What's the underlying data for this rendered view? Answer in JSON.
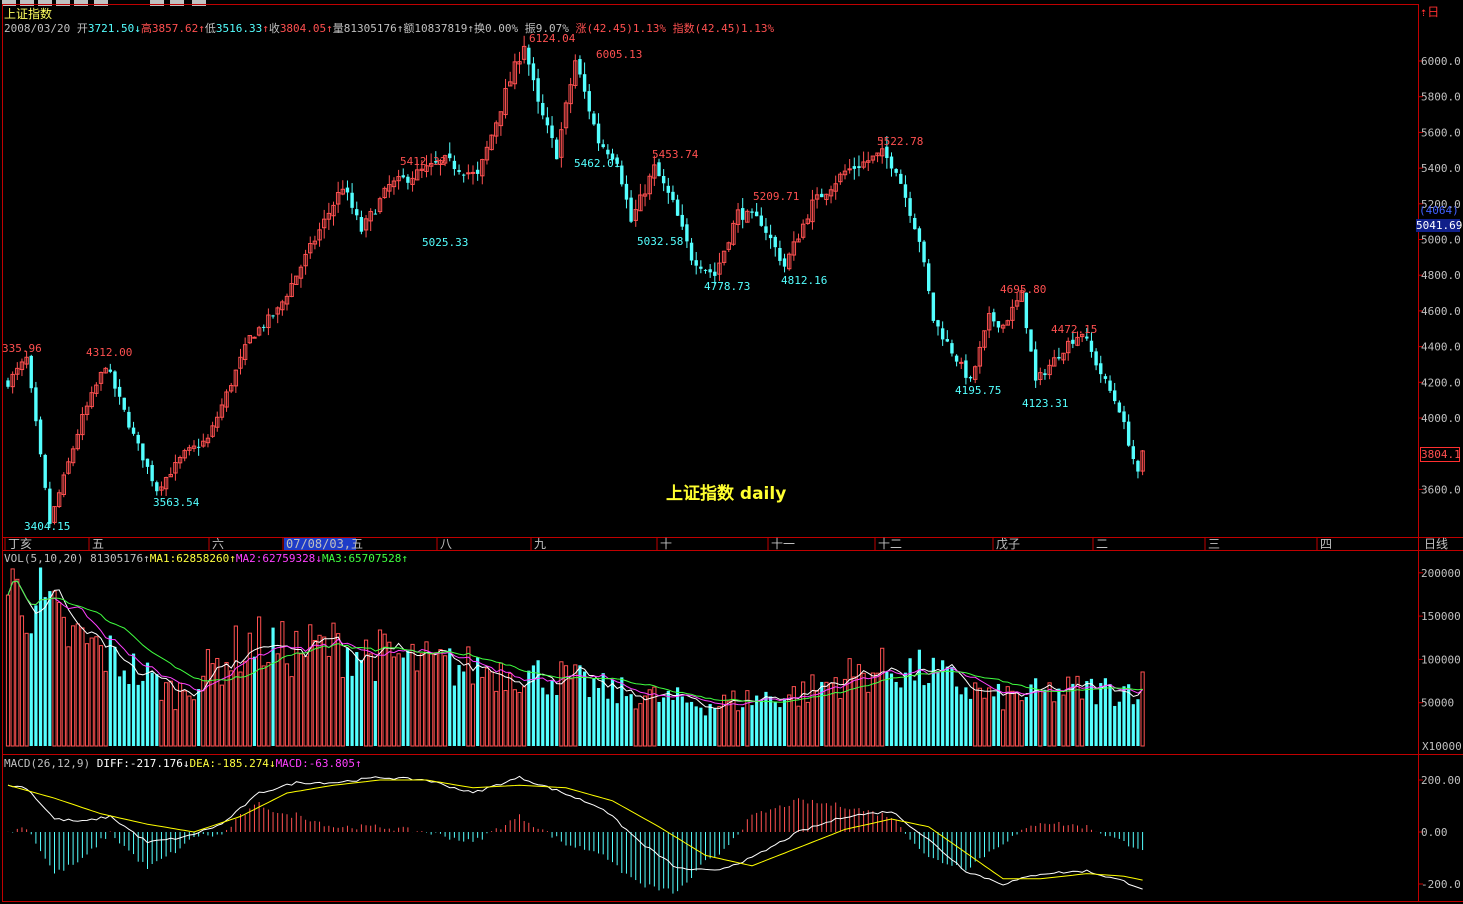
{
  "header": {
    "title": "上证指数",
    "date": "2008/03/20",
    "open_label": "开",
    "open": "3721.50",
    "high_label": "高",
    "high": "3857.62",
    "low_label": "低",
    "low": "3516.33",
    "close_label": "收",
    "close": "3804.05",
    "volume_label": "量",
    "volume": "81305176",
    "amount_label": "额",
    "amount": "10837819",
    "turnover_label": "换",
    "turnover": "0.00%",
    "amplitude_label": "振",
    "amplitude": "9.07%",
    "change_label": "涨",
    "change": "(42.45)1.13%",
    "index_label": "指数",
    "index_change": "(42.45)1.13%"
  },
  "watermark": "上证指数 daily",
  "right_panel": {
    "code": "(4064)",
    "price": "5041.69",
    "current_tag": "3804.1",
    "vol_unit": "X10000",
    "top_icon": "up-arrow-icon",
    "top_label": "日"
  },
  "colors": {
    "up": "#ff5050",
    "down": "#54ffff",
    "frame": "#c00000",
    "ma1": "#ffffff",
    "ma2": "#ff40ff",
    "ma3": "#40ff40",
    "diff": "#ffffff",
    "dea": "#ffff00",
    "date_bg": "#1e3cc8"
  },
  "chart_data": [
    {
      "type": "candlestick",
      "title": "上证指数",
      "y_ticks": [
        "6000.0",
        "5800.0",
        "5600.0",
        "5400.0",
        "5200.0",
        "5000.0",
        "4800.0",
        "4600.0",
        "4400.0",
        "4200.0",
        "4000.0",
        "3800.0",
        "3600.0"
      ],
      "x_ticks": [
        "丁亥",
        "五",
        "六",
        "07/08/03,五",
        "八",
        "九",
        "十",
        "十一",
        "十二",
        "戊子",
        "二",
        "三",
        "四",
        "日线"
      ],
      "annotations": [
        {
          "text": "335.96",
          "kind": "high"
        },
        {
          "text": "4312.00",
          "kind": "high"
        },
        {
          "text": "3404.15",
          "kind": "low"
        },
        {
          "text": "3563.54",
          "kind": "low"
        },
        {
          "text": "5412.32",
          "kind": "high"
        },
        {
          "text": "5025.33",
          "kind": "low"
        },
        {
          "text": "6124.04",
          "kind": "high"
        },
        {
          "text": "6005.13",
          "kind": "high"
        },
        {
          "text": "5462.01",
          "kind": "low"
        },
        {
          "text": "5453.74",
          "kind": "high"
        },
        {
          "text": "5032.58",
          "kind": "low"
        },
        {
          "text": "5209.71",
          "kind": "high"
        },
        {
          "text": "4778.73",
          "kind": "low"
        },
        {
          "text": "4812.16",
          "kind": "low"
        },
        {
          "text": "5522.78",
          "kind": "high"
        },
        {
          "text": "4195.75",
          "kind": "low"
        },
        {
          "text": "4695.80",
          "kind": "high"
        },
        {
          "text": "4472.15",
          "kind": "high"
        },
        {
          "text": "4123.31",
          "kind": "low"
        }
      ],
      "price_path": [
        [
          0,
          4200
        ],
        [
          4,
          4330
        ],
        [
          9,
          3410
        ],
        [
          16,
          4000
        ],
        [
          21,
          4300
        ],
        [
          27,
          3900
        ],
        [
          32,
          3600
        ],
        [
          38,
          3800
        ],
        [
          43,
          3880
        ],
        [
          52,
          4450
        ],
        [
          58,
          4600
        ],
        [
          64,
          4900
        ],
        [
          72,
          5300
        ],
        [
          76,
          5050
        ],
        [
          82,
          5300
        ],
        [
          94,
          5440
        ],
        [
          101,
          5350
        ],
        [
          107,
          5820
        ],
        [
          111,
          6100
        ],
        [
          114,
          5750
        ],
        [
          118,
          5480
        ],
        [
          122,
          6000
        ],
        [
          127,
          5550
        ],
        [
          131,
          5450
        ],
        [
          134,
          5100
        ],
        [
          139,
          5400
        ],
        [
          143,
          5200
        ],
        [
          147,
          4900
        ],
        [
          152,
          4800
        ],
        [
          157,
          5150
        ],
        [
          162,
          5100
        ],
        [
          167,
          4850
        ],
        [
          173,
          5200
        ],
        [
          180,
          5380
        ],
        [
          188,
          5480
        ],
        [
          191,
          5400
        ],
        [
          196,
          5000
        ],
        [
          199,
          4550
        ],
        [
          207,
          4200
        ],
        [
          211,
          4560
        ],
        [
          214,
          4520
        ],
        [
          218,
          4690
        ],
        [
          221,
          4200
        ],
        [
          228,
          4420
        ],
        [
          231,
          4480
        ],
        [
          235,
          4250
        ],
        [
          239,
          4050
        ],
        [
          243,
          3680
        ],
        [
          244,
          3800
        ]
      ]
    },
    {
      "type": "bar",
      "title": "VOL(5,10,20)",
      "value": "81305176",
      "series": [
        {
          "name": "MA1",
          "value": "62858260"
        },
        {
          "name": "MA2",
          "value": "62759328"
        },
        {
          "name": "MA3",
          "value": "65707528"
        }
      ],
      "y_ticks": [
        "200000",
        "150000",
        "100000",
        "50000"
      ],
      "volume_path": [
        [
          0,
          180000
        ],
        [
          6,
          170000
        ],
        [
          12,
          130000
        ],
        [
          20,
          110000
        ],
        [
          28,
          85000
        ],
        [
          36,
          60000
        ],
        [
          44,
          90000
        ],
        [
          52,
          120000
        ],
        [
          60,
          110000
        ],
        [
          70,
          115000
        ],
        [
          80,
          105000
        ],
        [
          90,
          95000
        ],
        [
          100,
          90000
        ],
        [
          110,
          85000
        ],
        [
          118,
          80000
        ],
        [
          128,
          65000
        ],
        [
          140,
          55000
        ],
        [
          152,
          48000
        ],
        [
          160,
          55000
        ],
        [
          170,
          60000
        ],
        [
          180,
          80000
        ],
        [
          190,
          90000
        ],
        [
          198,
          85000
        ],
        [
          205,
          70000
        ],
        [
          212,
          55000
        ],
        [
          220,
          60000
        ],
        [
          230,
          65000
        ],
        [
          238,
          65000
        ],
        [
          244,
          70000
        ]
      ]
    },
    {
      "type": "line",
      "title": "MACD(26,12,9)",
      "series": [
        {
          "name": "DIFF",
          "value": "-217.176"
        },
        {
          "name": "DEA",
          "value": "-185.274"
        },
        {
          "name": "MACD",
          "value": "-63.805"
        }
      ],
      "y_ticks": [
        "200.00",
        "0.00",
        "-200.0"
      ],
      "diff_path": [
        [
          0,
          180
        ],
        [
          4,
          170
        ],
        [
          10,
          50
        ],
        [
          16,
          40
        ],
        [
          22,
          60
        ],
        [
          30,
          -40
        ],
        [
          38,
          -20
        ],
        [
          46,
          30
        ],
        [
          54,
          150
        ],
        [
          62,
          190
        ],
        [
          70,
          190
        ],
        [
          80,
          210
        ],
        [
          90,
          200
        ],
        [
          100,
          150
        ],
        [
          110,
          210
        ],
        [
          118,
          160
        ],
        [
          128,
          90
        ],
        [
          136,
          -40
        ],
        [
          144,
          -140
        ],
        [
          152,
          -150
        ],
        [
          160,
          -100
        ],
        [
          170,
          0
        ],
        [
          180,
          60
        ],
        [
          190,
          80
        ],
        [
          198,
          -30
        ],
        [
          206,
          -150
        ],
        [
          214,
          -200
        ],
        [
          222,
          -160
        ],
        [
          232,
          -150
        ],
        [
          240,
          -190
        ],
        [
          244,
          -217
        ]
      ],
      "dea_path": [
        [
          0,
          180
        ],
        [
          10,
          130
        ],
        [
          20,
          70
        ],
        [
          30,
          30
        ],
        [
          40,
          0
        ],
        [
          50,
          60
        ],
        [
          60,
          150
        ],
        [
          70,
          180
        ],
        [
          80,
          200
        ],
        [
          90,
          200
        ],
        [
          100,
          170
        ],
        [
          110,
          180
        ],
        [
          120,
          170
        ],
        [
          130,
          120
        ],
        [
          140,
          20
        ],
        [
          150,
          -90
        ],
        [
          160,
          -130
        ],
        [
          170,
          -60
        ],
        [
          180,
          10
        ],
        [
          190,
          50
        ],
        [
          198,
          20
        ],
        [
          206,
          -80
        ],
        [
          214,
          -180
        ],
        [
          222,
          -180
        ],
        [
          232,
          -160
        ],
        [
          240,
          -170
        ],
        [
          244,
          -185
        ]
      ]
    }
  ]
}
